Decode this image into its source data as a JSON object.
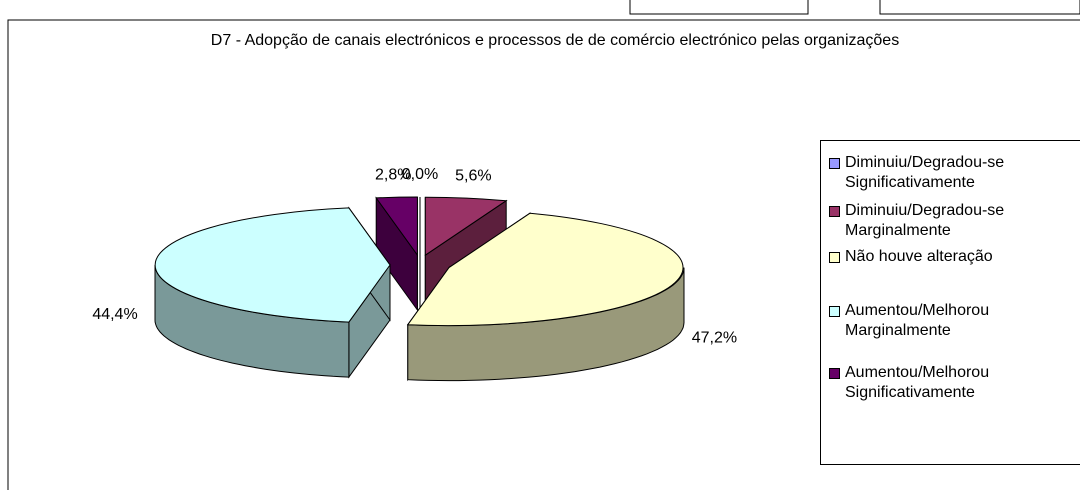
{
  "chart_data": {
    "type": "pie",
    "title": "D7 - Adopção de canais electrónicos  e processos de  de comércio electrónico pelas organizações",
    "categories": [
      "Diminuiu/Degradou-se Significativamente",
      "Diminuiu/Degradou-se Marginalmente",
      "Não houve alteração",
      "Aumentou/Melhorou Marginalmente",
      "Aumentou/Melhorou Significativamente"
    ],
    "values": [
      0.0,
      5.6,
      47.2,
      44.4,
      2.8
    ],
    "value_labels": [
      "0,0%",
      "5,6%",
      "47,2%",
      "44,4%",
      "2,8%"
    ],
    "colors": [
      "#9999ff",
      "#993366",
      "#ffffcc",
      "#ccffff",
      "#660066"
    ]
  }
}
